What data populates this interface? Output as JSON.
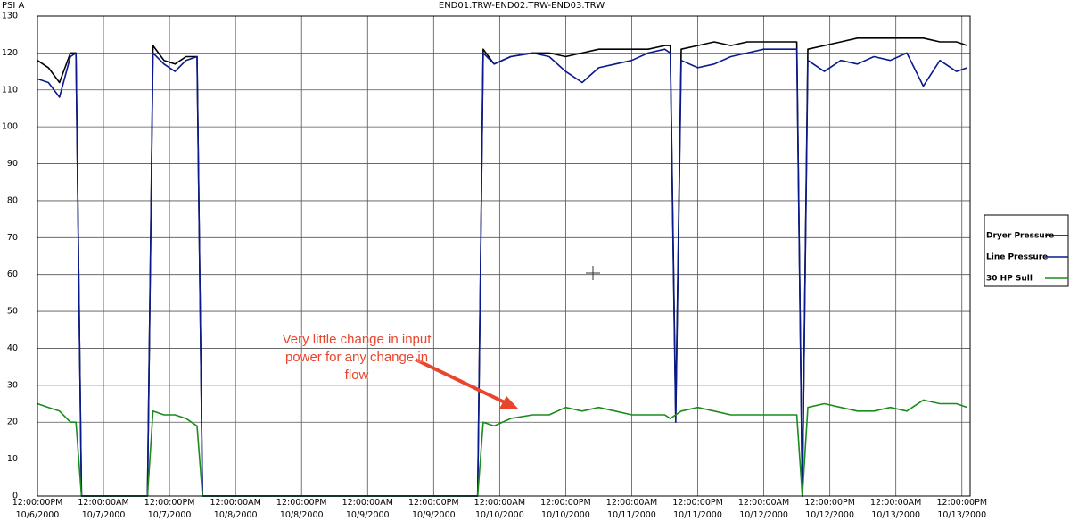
{
  "chart_data": {
    "type": "line",
    "title": "END01.TRW-END02.TRW-END03.TRW",
    "y_label": "PSI A",
    "annotation": "Very little change in input power for any change in flow",
    "x": [
      "2000-10-06T12:00",
      "2000-10-06T14:00",
      "2000-10-06T16:00",
      "2000-10-06T18:00",
      "2000-10-06T19:00",
      "2000-10-06T20:00",
      "2000-10-07T08:00",
      "2000-10-07T09:00",
      "2000-10-07T11:00",
      "2000-10-07T13:00",
      "2000-10-07T15:00",
      "2000-10-07T17:00",
      "2000-10-07T18:00",
      "2000-10-09T20:00",
      "2000-10-09T21:00",
      "2000-10-09T23:00",
      "2000-10-10T02:00",
      "2000-10-10T06:00",
      "2000-10-10T09:00",
      "2000-10-10T12:00",
      "2000-10-10T15:00",
      "2000-10-10T18:00",
      "2000-10-10T21:00",
      "2000-10-11T00:00",
      "2000-10-11T03:00",
      "2000-10-11T06:00",
      "2000-10-11T07:00",
      "2000-10-11T08:00",
      "2000-10-11T09:00",
      "2000-10-11T12:00",
      "2000-10-11T15:00",
      "2000-10-11T18:00",
      "2000-10-11T21:00",
      "2000-10-12T00:00",
      "2000-10-12T03:00",
      "2000-10-12T06:00",
      "2000-10-12T07:00",
      "2000-10-12T08:00",
      "2000-10-12T11:00",
      "2000-10-12T14:00",
      "2000-10-12T17:00",
      "2000-10-12T20:00",
      "2000-10-12T23:00",
      "2000-10-13T02:00",
      "2000-10-13T05:00",
      "2000-10-13T08:00",
      "2000-10-13T11:00",
      "2000-10-13T13:00"
    ],
    "series": [
      {
        "name": "Dryer Pressure",
        "color": "#000000",
        "values": [
          118,
          116,
          112,
          120,
          120,
          0,
          0,
          122,
          118,
          117,
          119,
          119,
          0,
          0,
          121,
          117,
          119,
          120,
          120,
          119,
          120,
          121,
          121,
          121,
          121,
          122,
          122,
          22,
          121,
          122,
          123,
          122,
          123,
          123,
          123,
          123,
          0,
          121,
          122,
          123,
          124,
          124,
          124,
          124,
          124,
          123,
          123,
          122
        ]
      },
      {
        "name": "Line Pressure",
        "color": "#0a1a8c",
        "values": [
          113,
          112,
          108,
          119,
          120,
          0,
          0,
          120,
          117,
          115,
          118,
          119,
          0,
          0,
          120,
          117,
          119,
          120,
          119,
          115,
          112,
          116,
          117,
          118,
          120,
          121,
          120,
          20,
          118,
          116,
          117,
          119,
          120,
          121,
          121,
          121,
          0,
          118,
          115,
          118,
          117,
          119,
          118,
          120,
          111,
          118,
          115,
          116
        ]
      },
      {
        "name": "30 HP Sull",
        "color": "#1a8c1a",
        "values": [
          25,
          24,
          23,
          20,
          20,
          0,
          0,
          23,
          22,
          22,
          21,
          19,
          0,
          0,
          20,
          19,
          21,
          22,
          22,
          24,
          23,
          24,
          23,
          22,
          22,
          22,
          21,
          22,
          23,
          24,
          23,
          22,
          22,
          22,
          22,
          22,
          0,
          24,
          25,
          24,
          23,
          23,
          24,
          23,
          26,
          25,
          25,
          24
        ]
      }
    ],
    "xlim": [
      "2000-10-06T12:00",
      "2000-10-13T13:30"
    ],
    "xticks": [
      {
        "value": "2000-10-06T12:00",
        "label": "12:00:00PM\n10/6/2000"
      },
      {
        "value": "2000-10-07T00:00",
        "label": "12:00:00AM\n10/7/2000"
      },
      {
        "value": "2000-10-07T12:00",
        "label": "12:00:00PM\n10/7/2000"
      },
      {
        "value": "2000-10-08T00:00",
        "label": "12:00:00AM\n10/8/2000"
      },
      {
        "value": "2000-10-08T12:00",
        "label": "12:00:00PM\n10/8/2000"
      },
      {
        "value": "2000-10-09T00:00",
        "label": "12:00:00AM\n10/9/2000"
      },
      {
        "value": "2000-10-09T12:00",
        "label": "12:00:00PM\n10/9/2000"
      },
      {
        "value": "2000-10-10T00:00",
        "label": "12:00:00AM\n10/10/2000"
      },
      {
        "value": "2000-10-10T12:00",
        "label": "12:00:00PM\n10/10/2000"
      },
      {
        "value": "2000-10-11T00:00",
        "label": "12:00:00AM\n10/11/2000"
      },
      {
        "value": "2000-10-11T12:00",
        "label": "12:00:00PM\n10/11/2000"
      },
      {
        "value": "2000-10-12T00:00",
        "label": "12:00:00AM\n10/12/2000"
      },
      {
        "value": "2000-10-12T12:00",
        "label": "12:00:00PM\n10/12/2000"
      },
      {
        "value": "2000-10-13T00:00",
        "label": "12:00:00AM\n10/13/2000"
      },
      {
        "value": "2000-10-13T12:00",
        "label": "12:00:00PM\n10/13/2000"
      }
    ],
    "ylim": [
      0,
      130
    ],
    "yticks": [
      0,
      10,
      20,
      30,
      40,
      50,
      60,
      70,
      80,
      90,
      100,
      110,
      120,
      130
    ],
    "grid": true
  }
}
